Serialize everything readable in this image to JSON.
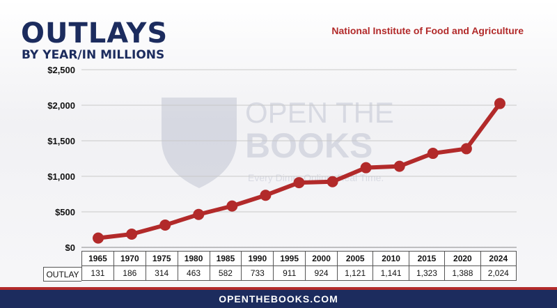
{
  "header": {
    "title": "OUTLAYS",
    "subtitle": "BY YEAR/IN MILLIONS",
    "agency": "National Institute of Food and Agriculture"
  },
  "watermark": {
    "line1": "OPEN THE",
    "line2": "BOOKS",
    "tagline": "Every Dime. Online. Real Time."
  },
  "table": {
    "row_label": "OUTLAY"
  },
  "footer": {
    "url": "OPENTHEBOOKS.COM"
  },
  "colors": {
    "line": "#b22a2a",
    "navy": "#1c2c5e"
  },
  "chart_data": {
    "type": "line",
    "categories": [
      "1965",
      "1970",
      "1975",
      "1980",
      "1985",
      "1990",
      "1995",
      "2000",
      "2005",
      "2010",
      "2015",
      "2020",
      "2024"
    ],
    "series": [
      {
        "name": "OUTLAY",
        "values": [
          131,
          186,
          314,
          463,
          582,
          733,
          911,
          924,
          1121,
          1141,
          1323,
          1388,
          2024
        ],
        "labels": [
          "131",
          "186",
          "314",
          "463",
          "582",
          "733",
          "911",
          "924",
          "1,121",
          "1,141",
          "1,323",
          "1,388",
          "2,024"
        ]
      }
    ],
    "ylim": [
      0,
      2500
    ],
    "yticks": [
      0,
      500,
      1000,
      1500,
      2000,
      2500
    ],
    "ytick_labels": [
      "$0",
      "$500",
      "$1,000",
      "$1,500",
      "$2,000",
      "$2,500"
    ],
    "grid": true,
    "legend": "none"
  }
}
